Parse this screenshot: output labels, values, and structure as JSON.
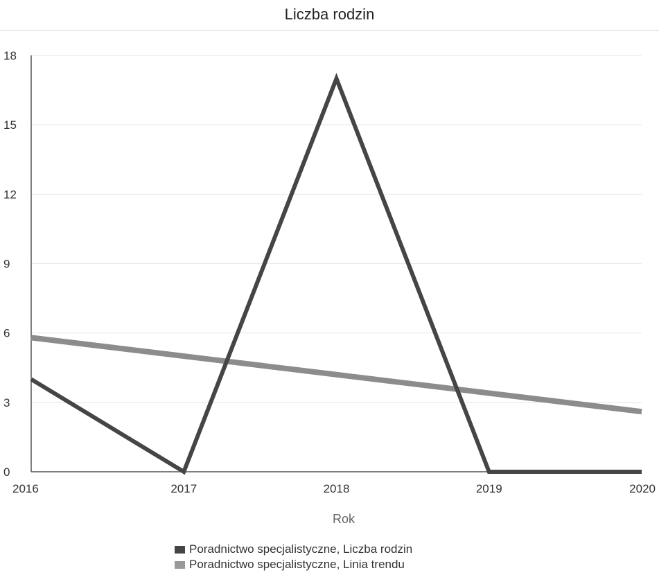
{
  "chart_data": {
    "type": "line",
    "title": "Liczba rodzin",
    "xlabel": "Rok",
    "ylabel": "",
    "x": [
      2016,
      2017,
      2018,
      2019,
      2020
    ],
    "x_tick_labels": [
      "2016",
      "2017",
      "2018",
      "2019",
      "2020"
    ],
    "ylim": [
      0,
      18
    ],
    "y_ticks": [
      0,
      3,
      6,
      9,
      12,
      15,
      18
    ],
    "grid": true,
    "legend_position": "bottom",
    "series": [
      {
        "name": "Poradnictwo specjalistyczne, Liczba rodzin",
        "values": [
          4,
          0,
          17,
          0,
          0
        ],
        "color": "#454545"
      },
      {
        "name": "Poradnictwo specjalistyczne, Linia trendu",
        "values": [
          5.8,
          5.0,
          4.2,
          3.4,
          2.6
        ],
        "color": "#8c8c8c"
      }
    ]
  }
}
